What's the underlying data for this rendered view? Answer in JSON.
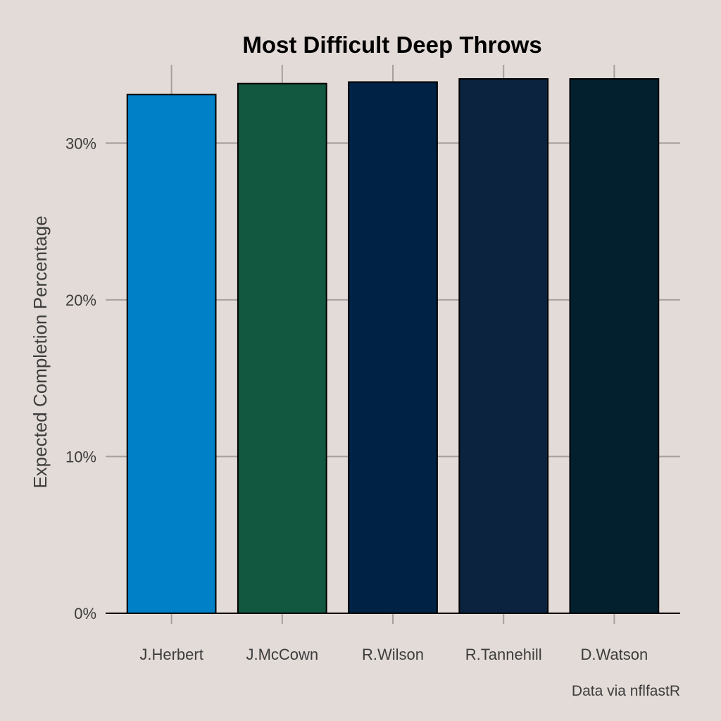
{
  "chart_data": {
    "type": "bar",
    "title": "Most Difficult Deep Throws",
    "xlabel": "",
    "ylabel": "Expected Completion Percentage",
    "caption": "Data via nflfastR",
    "categories": [
      "J.Herbert",
      "J.McCown",
      "R.Wilson",
      "R.Tannehill",
      "D.Watson"
    ],
    "values": [
      33.1,
      33.8,
      33.9,
      34.1,
      34.1
    ],
    "colors": [
      "#0080c6",
      "#125740",
      "#002244",
      "#0c2340",
      "#03202f"
    ],
    "yticks": [
      0,
      10,
      20,
      30
    ],
    "ytick_labels": [
      "0%",
      "10%",
      "20%",
      "30%"
    ],
    "ylim": [
      0,
      35
    ],
    "grid": true,
    "legend": "none"
  }
}
